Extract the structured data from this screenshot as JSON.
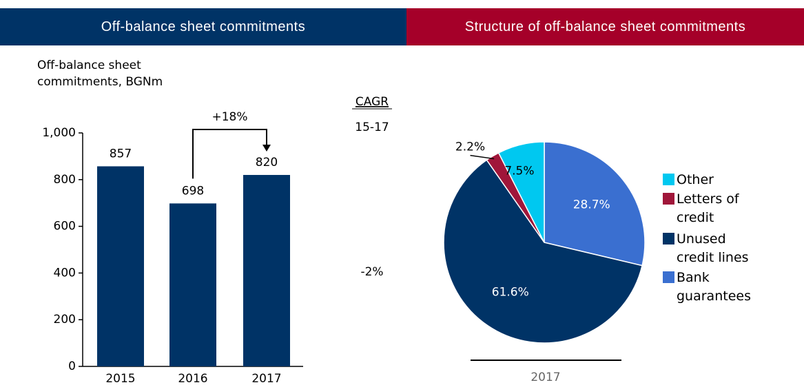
{
  "header": {
    "left": "Off-balance sheet commitments",
    "right": "Structure of off-balance sheet commitments"
  },
  "chart_data": [
    {
      "type": "bar",
      "title": "Off-balance sheet commitments, BGNm",
      "categories": [
        "2015",
        "2016",
        "2017"
      ],
      "values": [
        857,
        698,
        820
      ],
      "color": "#003366",
      "ylim": [
        0,
        1000
      ],
      "yticks": [
        0,
        200,
        400,
        600,
        800,
        {
          "value": 1000,
          "label": "1,000"
        }
      ],
      "annotation": "+18%",
      "cagr": {
        "label": "CAGR",
        "period": "15-17",
        "value": "-2%"
      }
    },
    {
      "type": "pie",
      "x_label": "2017",
      "categories": [
        "Other",
        "Letters of credit",
        "Unused credit lines",
        "Bank guarantees"
      ],
      "values": [
        7.5,
        2.2,
        61.6,
        28.7
      ],
      "value_labels": [
        "7.5%",
        "2.2%",
        "61.6%",
        "28.7%"
      ],
      "colors": [
        "#00c8f0",
        "#a0163a",
        "#003366",
        "#3a6fd0"
      ]
    }
  ]
}
